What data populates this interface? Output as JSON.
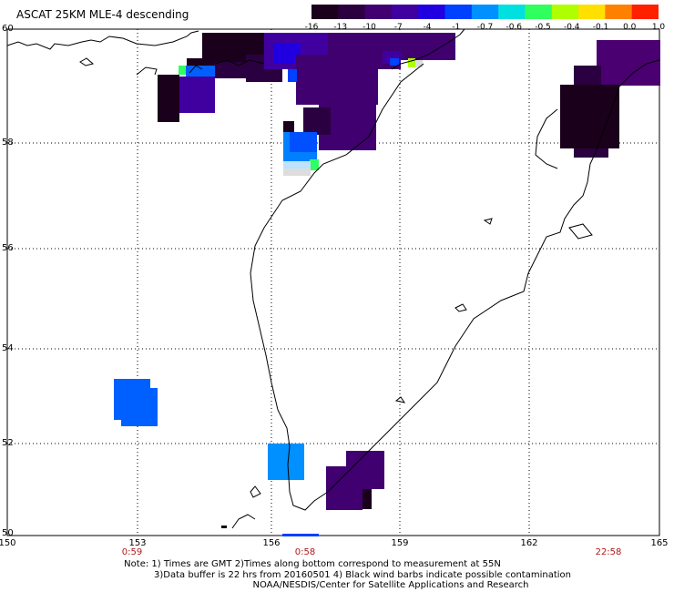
{
  "title": "ASCAT 25KM MLE-4 descending",
  "colorbar": {
    "labels": [
      "-16",
      "-13",
      "-10",
      "-7",
      "-4",
      "-1",
      "-0.7",
      "-0.6",
      "-0.5",
      "-0.4",
      "-0.1",
      "0.0",
      "1.0"
    ],
    "colors": [
      "#1a001a",
      "#2b0040",
      "#400070",
      "#4000a0",
      "#2000e0",
      "#0040ff",
      "#0090ff",
      "#00e0e0",
      "#30ff60",
      "#b0ff00",
      "#ffe000",
      "#ff8000",
      "#ff2000"
    ]
  },
  "axes": {
    "lat_labels": [
      "60",
      "58",
      "56",
      "54",
      "52",
      "50"
    ],
    "lon_labels": [
      "150",
      "153",
      "156",
      "159",
      "162",
      "165"
    ],
    "times": [
      "0:59",
      "0:58",
      "22:58"
    ]
  },
  "notes": {
    "line1": "Note: 1) Times are GMT 2)Times along bottom correspond to measurement at 55N",
    "line2": "3)Data buffer is 22 hrs from 20160501 4) Black wind barbs indicate possible contamination",
    "line3": "NOAA/NESDIS/Center for Satellite Applications and Research"
  }
}
